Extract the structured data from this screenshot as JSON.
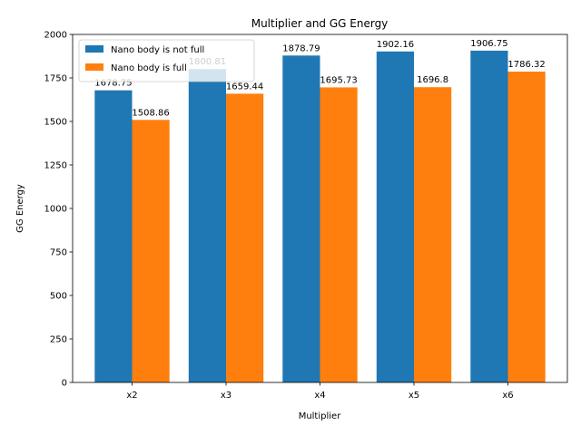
{
  "chart_data": {
    "type": "bar",
    "title": "Multiplier and GG Energy",
    "xlabel": "Multiplier",
    "ylabel": "GG Energy",
    "categories": [
      "x2",
      "x3",
      "x4",
      "x5",
      "x6"
    ],
    "series": [
      {
        "name": "Nano body is not full",
        "color": "#1f77b4",
        "values": [
          1678.75,
          1800.81,
          1878.79,
          1902.16,
          1906.75
        ]
      },
      {
        "name": "Nano body is full",
        "color": "#ff7f0e",
        "values": [
          1508.86,
          1659.44,
          1695.73,
          1696.8,
          1786.32
        ]
      }
    ],
    "ylim": [
      0,
      2000
    ],
    "yticks": [
      0,
      250,
      500,
      750,
      1000,
      1250,
      1500,
      1750,
      2000
    ],
    "legend_position": "top-left",
    "grid": false
  }
}
